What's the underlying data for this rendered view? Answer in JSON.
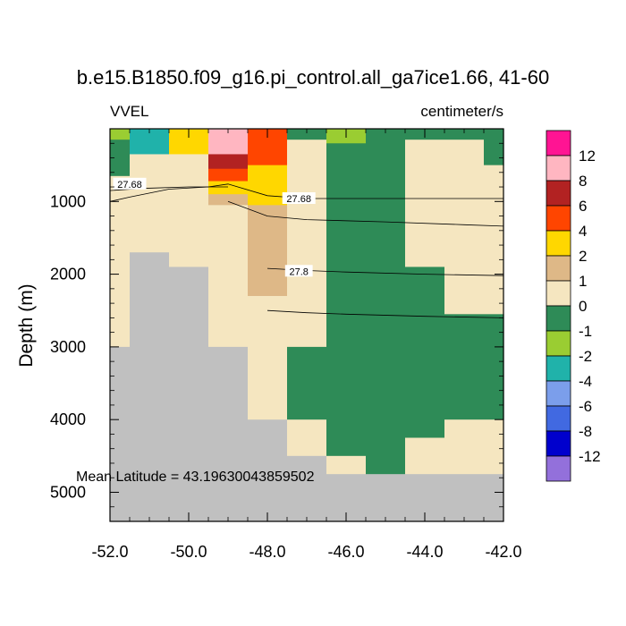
{
  "chart_data": {
    "type": "heatmap",
    "title": "b.e15.B1850.f09_g16.pi_control.all_ga7ice1.66, 41-60",
    "left_label": "VVEL",
    "right_label": "centimeter/s",
    "xlabel": "",
    "ylabel": "Depth (m)",
    "xlim": [
      -52.0,
      -42.0
    ],
    "ylim": [
      5400,
      0
    ],
    "x_ticks": [
      -52.0,
      -50.0,
      -48.0,
      -46.0,
      -44.0,
      -42.0
    ],
    "x_tick_labels": [
      "-52.0",
      "-50.0",
      "-48.0",
      "-46.0",
      "-44.0",
      "-42.0"
    ],
    "y_ticks": [
      1000,
      2000,
      3000,
      4000,
      5000
    ],
    "y_tick_labels": [
      "1000",
      "2000",
      "3000",
      "4000",
      "5000"
    ],
    "annotation": "Mean Latitude = 43.19630043859502",
    "colorbar": {
      "colors": [
        "#ff1493",
        "#ffb6c1",
        "#b22222",
        "#ff4500",
        "#ffd700",
        "#deb887",
        "#f5e6c0",
        "#2e8b57",
        "#9acd32",
        "#20b2aa",
        "#7b9eeb",
        "#4169e1",
        "#0000cd",
        "#9370db"
      ],
      "labels": [
        "12",
        "8",
        "6",
        "4",
        "2",
        "1",
        "0",
        "-1",
        "-2",
        "-4",
        "-6",
        "-8",
        "-12"
      ]
    },
    "land_color": "#c0c0c0",
    "columns_lon": [
      -52.0,
      -51.0,
      -50.0,
      -49.0,
      -48.0,
      -47.0,
      -46.0,
      -45.0,
      -44.0,
      -43.0,
      -42.0
    ],
    "cells": [
      {
        "lon": [
          -52.0,
          -51.5
        ],
        "depth": [
          0,
          150
        ],
        "cat": "-2"
      },
      {
        "lon": [
          -52.0,
          -51.5
        ],
        "depth": [
          150,
          650
        ],
        "cat": "-1"
      },
      {
        "lon": [
          -52.0,
          -51.5
        ],
        "depth": [
          650,
          3000
        ],
        "cat": "0"
      },
      {
        "lon": [
          -52.0,
          -51.5
        ],
        "depth": [
          3000,
          5400
        ],
        "cat": "land"
      },
      {
        "lon": [
          -51.5,
          -50.5
        ],
        "depth": [
          0,
          350
        ],
        "cat": "-4"
      },
      {
        "lon": [
          -51.5,
          -50.5
        ],
        "depth": [
          350,
          1700
        ],
        "cat": "0"
      },
      {
        "lon": [
          -51.5,
          -50.5
        ],
        "depth": [
          1700,
          5400
        ],
        "cat": "land"
      },
      {
        "lon": [
          -50.5,
          -49.5
        ],
        "depth": [
          0,
          350
        ],
        "cat": "2"
      },
      {
        "lon": [
          -50.5,
          -49.5
        ],
        "depth": [
          350,
          1900
        ],
        "cat": "0"
      },
      {
        "lon": [
          -50.5,
          -49.5
        ],
        "depth": [
          1900,
          5400
        ],
        "cat": "land"
      },
      {
        "lon": [
          -49.5,
          -48.5
        ],
        "depth": [
          0,
          350
        ],
        "cat": "8"
      },
      {
        "lon": [
          -49.5,
          -48.5
        ],
        "depth": [
          350,
          550
        ],
        "cat": "6"
      },
      {
        "lon": [
          -49.5,
          -48.5
        ],
        "depth": [
          550,
          720
        ],
        "cat": "4"
      },
      {
        "lon": [
          -49.5,
          -48.5
        ],
        "depth": [
          720,
          900
        ],
        "cat": "2"
      },
      {
        "lon": [
          -49.5,
          -48.5
        ],
        "depth": [
          900,
          1050
        ],
        "cat": "1"
      },
      {
        "lon": [
          -49.5,
          -48.5
        ],
        "depth": [
          1050,
          3000
        ],
        "cat": "0"
      },
      {
        "lon": [
          -49.5,
          -48.5
        ],
        "depth": [
          3000,
          5400
        ],
        "cat": "land"
      },
      {
        "lon": [
          -48.5,
          -47.5
        ],
        "depth": [
          0,
          500
        ],
        "cat": "4"
      },
      {
        "lon": [
          -48.5,
          -47.5
        ],
        "depth": [
          500,
          1050
        ],
        "cat": "2"
      },
      {
        "lon": [
          -48.5,
          -47.5
        ],
        "depth": [
          1050,
          2300
        ],
        "cat": "1"
      },
      {
        "lon": [
          -48.5,
          -47.5
        ],
        "depth": [
          2300,
          4000
        ],
        "cat": "0"
      },
      {
        "lon": [
          -48.5,
          -47.5
        ],
        "depth": [
          4000,
          5400
        ],
        "cat": "land"
      },
      {
        "lon": [
          -47.5,
          -46.5
        ],
        "depth": [
          0,
          150
        ],
        "cat": "-1"
      },
      {
        "lon": [
          -47.5,
          -46.5
        ],
        "depth": [
          150,
          3000
        ],
        "cat": "0"
      },
      {
        "lon": [
          -47.5,
          -46.5
        ],
        "depth": [
          3000,
          4000
        ],
        "cat": "-1"
      },
      {
        "lon": [
          -47.5,
          -46.5
        ],
        "depth": [
          4000,
          4500
        ],
        "cat": "0"
      },
      {
        "lon": [
          -47.5,
          -46.5
        ],
        "depth": [
          4500,
          5400
        ],
        "cat": "land"
      },
      {
        "lon": [
          -46.5,
          -45.5
        ],
        "depth": [
          0,
          200
        ],
        "cat": "-2"
      },
      {
        "lon": [
          -46.5,
          -45.5
        ],
        "depth": [
          200,
          4500
        ],
        "cat": "-1"
      },
      {
        "lon": [
          -46.5,
          -45.5
        ],
        "depth": [
          4500,
          4750
        ],
        "cat": "0"
      },
      {
        "lon": [
          -46.5,
          -45.5
        ],
        "depth": [
          4750,
          5400
        ],
        "cat": "land"
      },
      {
        "lon": [
          -45.5,
          -44.5
        ],
        "depth": [
          0,
          4750
        ],
        "cat": "-1"
      },
      {
        "lon": [
          -45.5,
          -44.5
        ],
        "depth": [
          4750,
          5400
        ],
        "cat": "land"
      },
      {
        "lon": [
          -44.5,
          -43.5
        ],
        "depth": [
          0,
          150
        ],
        "cat": "-1"
      },
      {
        "lon": [
          -44.5,
          -43.5
        ],
        "depth": [
          150,
          1900
        ],
        "cat": "0"
      },
      {
        "lon": [
          -44.5,
          -43.5
        ],
        "depth": [
          1900,
          4250
        ],
        "cat": "-1"
      },
      {
        "lon": [
          -44.5,
          -43.5
        ],
        "depth": [
          4250,
          4750
        ],
        "cat": "0"
      },
      {
        "lon": [
          -44.5,
          -43.5
        ],
        "depth": [
          4750,
          5400
        ],
        "cat": "land"
      },
      {
        "lon": [
          -43.5,
          -42.5
        ],
        "depth": [
          0,
          150
        ],
        "cat": "-1"
      },
      {
        "lon": [
          -43.5,
          -42.5
        ],
        "depth": [
          150,
          2550
        ],
        "cat": "0"
      },
      {
        "lon": [
          -43.5,
          -42.5
        ],
        "depth": [
          2550,
          4000
        ],
        "cat": "-1"
      },
      {
        "lon": [
          -43.5,
          -42.5
        ],
        "depth": [
          4000,
          4750
        ],
        "cat": "0"
      },
      {
        "lon": [
          -43.5,
          -42.5
        ],
        "depth": [
          4750,
          5400
        ],
        "cat": "land"
      },
      {
        "lon": [
          -42.5,
          -42.0
        ],
        "depth": [
          0,
          500
        ],
        "cat": "-1"
      },
      {
        "lon": [
          -42.5,
          -42.0
        ],
        "depth": [
          500,
          2550
        ],
        "cat": "0"
      },
      {
        "lon": [
          -42.5,
          -42.0
        ],
        "depth": [
          2550,
          4000
        ],
        "cat": "-1"
      },
      {
        "lon": [
          -42.5,
          -42.0
        ],
        "depth": [
          4000,
          4750
        ],
        "cat": "0"
      },
      {
        "lon": [
          -42.5,
          -42.0
        ],
        "depth": [
          4750,
          5400
        ],
        "cat": "land"
      }
    ],
    "contours": [
      {
        "label": "27.68",
        "label_at": [
          -51.5,
          760
        ],
        "points": [
          [
            -52.0,
            1000
          ],
          [
            -51.5,
            940
          ],
          [
            -50.5,
            830
          ],
          [
            -49.5,
            800
          ],
          [
            -49.0,
            760
          ],
          [
            -48.0,
            920
          ],
          [
            -47.0,
            960
          ],
          [
            -45.0,
            960
          ],
          [
            -43.0,
            960
          ],
          [
            -42.0,
            960
          ]
        ]
      },
      {
        "label": "27.68",
        "label_at": [
          -47.2,
          960
        ],
        "points": []
      },
      {
        "label": "",
        "label_at": null,
        "points": [
          [
            -52.0,
            850
          ],
          [
            -51.2,
            820
          ],
          [
            -50.0,
            800
          ],
          [
            -49.0,
            800
          ]
        ]
      },
      {
        "label": "",
        "label_at": null,
        "points": [
          [
            -49.0,
            1000
          ],
          [
            -48.0,
            1200
          ],
          [
            -47.0,
            1250
          ],
          [
            -45.0,
            1280
          ],
          [
            -43.0,
            1320
          ],
          [
            -42.0,
            1340
          ]
        ]
      },
      {
        "label": "27.8",
        "label_at": [
          -47.2,
          1960
        ],
        "points": [
          [
            -48.0,
            1920
          ],
          [
            -47.0,
            1950
          ],
          [
            -46.0,
            1970
          ],
          [
            -44.0,
            2000
          ],
          [
            -42.0,
            2020
          ]
        ]
      },
      {
        "label": "",
        "label_at": null,
        "points": [
          [
            -48.0,
            2500
          ],
          [
            -47.0,
            2530
          ],
          [
            -46.0,
            2550
          ],
          [
            -44.0,
            2580
          ],
          [
            -42.0,
            2600
          ]
        ]
      }
    ]
  }
}
